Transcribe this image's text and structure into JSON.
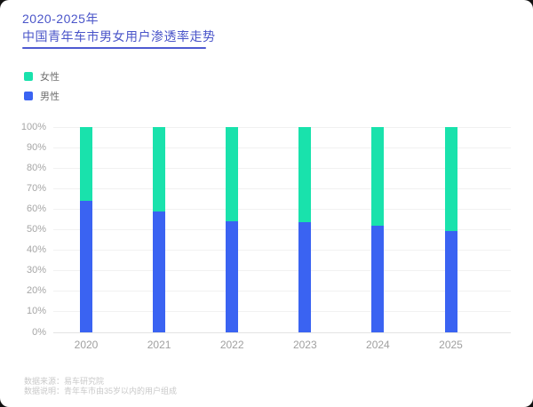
{
  "header": {
    "title_line1": "2020-2025年",
    "title_line2": "中国青年车市男女用户渗透率走势"
  },
  "legend": [
    {
      "label": "女性",
      "color": "#19e2ac"
    },
    {
      "label": "男性",
      "color": "#3a63f2"
    }
  ],
  "footer": {
    "source": "数据来源：易车研究院",
    "note": "数据说明：青年车市由35岁以内的用户组成"
  },
  "colors": {
    "female_green": "#19e2ac",
    "male_blue": "#3a63f2",
    "title_blue": "#4a55c9",
    "divider_blue": "#4e5ad1",
    "axis_text_gray": "#a6a6a6",
    "gridline_gray": "#f1f1f1"
  },
  "chart_data": {
    "type": "bar",
    "stacked": true,
    "title": "2020-2025年中国青年车市男女用户渗透率走势",
    "categories": [
      "2020",
      "2021",
      "2022",
      "2023",
      "2024",
      "2025"
    ],
    "series": [
      {
        "name": "男性",
        "color": "#3a63f2",
        "values": [
          64,
          59,
          54,
          53.5,
          52,
          49.5
        ]
      },
      {
        "name": "女性",
        "color": "#19e2ac",
        "values": [
          36,
          41,
          46,
          46.5,
          48,
          50.5
        ]
      }
    ],
    "xlabel": "",
    "ylabel": "",
    "ylim": [
      0,
      100
    ],
    "y_ticks": [
      "0%",
      "10%",
      "20%",
      "30%",
      "40%",
      "50%",
      "60%",
      "70%",
      "80%",
      "90%",
      "100%"
    ],
    "grid": true,
    "legend_position": "top-left"
  }
}
